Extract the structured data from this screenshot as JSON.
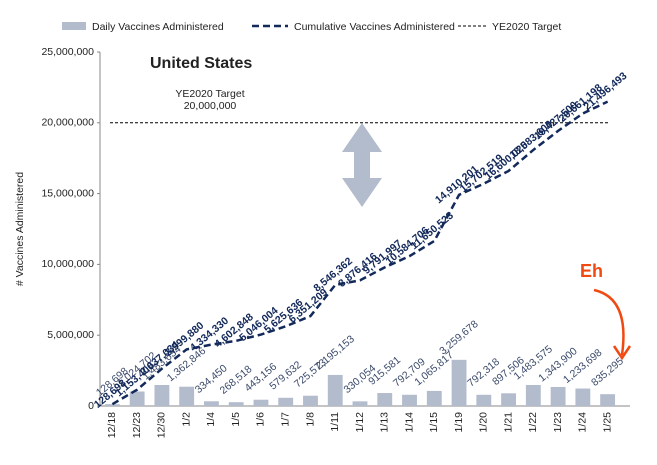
{
  "chart_data": {
    "type": "bar-line",
    "y_axis_label": "# Vaccines Administered",
    "annotations": {
      "panel_title": "United States",
      "comment": "Eh"
    },
    "categories": [
      "12/18",
      "12/23",
      "12/30",
      "1/2",
      "1/4",
      "1/5",
      "1/6",
      "1/7",
      "1/8",
      "1/11",
      "1/12",
      "1/13",
      "1/14",
      "1/15",
      "1/19",
      "1/20",
      "1/21",
      "1/22",
      "1/23",
      "1/24",
      "1/25"
    ],
    "series": [
      {
        "name": "Daily Vaccines Administered",
        "kind": "bar",
        "color": "#b3bccd",
        "values": [
          128698,
          1024702,
          1483634,
          1362846,
          334450,
          268518,
          443156,
          579632,
          725573,
          2195153,
          330054,
          915581,
          792709,
          1065817,
          3259678,
          792318,
          897506,
          1483575,
          1343900,
          1233698,
          835295
        ],
        "value_labels": [
          "128,698",
          "1,024,702",
          "1,483,634",
          "1,362,846",
          "334,450",
          "268,518",
          "443,156",
          "579,632",
          "725,573",
          "2,195,153",
          "330,054",
          "915,581",
          "792,709",
          "1,065,817",
          "3,259,678",
          "792,318",
          "897,506",
          "1,483,575",
          "1,343,900",
          "1,233,698",
          "835,295"
        ]
      },
      {
        "name": "Cumulative Vaccines Administered",
        "kind": "line",
        "color": "#13295a",
        "values": [
          128698,
          1153400,
          2637034,
          3999880,
          4334330,
          4602848,
          5046004,
          5625636,
          6351209,
          8546362,
          8876416,
          9791997,
          10584706,
          11650523,
          14910201,
          15702519,
          16600025,
          18083600,
          19427500,
          20661198,
          21496493
        ],
        "value_labels": [
          "128,698",
          "1,153,400",
          "2,637,034",
          "3,999,880",
          "4,334,330",
          "4,602,848",
          "5,046,004",
          "5,625,636",
          "6,351,209",
          "8,546,362",
          "8,876,416",
          "9,791,997",
          "10,584,706",
          "11,650,523",
          "14,910,201",
          "15,702,519",
          "16,600,025",
          "18,083,600",
          "19,427,500",
          "20,661,198",
          "21,496,493"
        ]
      }
    ],
    "target": {
      "name": "YE2020 Target",
      "value": 20000000,
      "label": "20,000,000",
      "color": "#000000"
    },
    "ylim": [
      0,
      25000000
    ],
    "yticks": [
      {
        "value": 0,
        "label": "0"
      },
      {
        "value": 5000000,
        "label": "5,000,000"
      },
      {
        "value": 10000000,
        "label": "10,000,000"
      },
      {
        "value": 15000000,
        "label": "15,000,000"
      },
      {
        "value": 20000000,
        "label": "20,000,000"
      },
      {
        "value": 25000000,
        "label": "25,000,000"
      }
    ],
    "grid": false
  }
}
